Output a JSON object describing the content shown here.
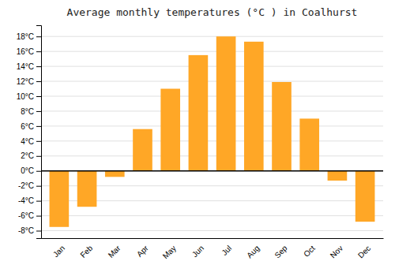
{
  "chart_data": {
    "type": "bar",
    "title": "Average monthly temperatures (°C ) in Coalhurst",
    "categories": [
      "Jan",
      "Feb",
      "Mar",
      "Apr",
      "May",
      "Jun",
      "Jul",
      "Aug",
      "Sep",
      "Oct",
      "Nov",
      "Dec"
    ],
    "values": [
      -7.5,
      -4.8,
      -0.8,
      5.6,
      11.0,
      15.5,
      18.0,
      17.3,
      11.9,
      7.0,
      -1.3,
      -6.8
    ],
    "color": "#FFA726",
    "ylim": [
      -9,
      19.5
    ],
    "yticks": [
      {
        "value": -8,
        "label": "-8°C"
      },
      {
        "value": -6,
        "label": "-6°C"
      },
      {
        "value": -4,
        "label": "-4°C"
      },
      {
        "value": -2,
        "label": "-2°C"
      },
      {
        "value": 0,
        "label": "0°C"
      },
      {
        "value": 2,
        "label": "2°C"
      },
      {
        "value": 4,
        "label": "4°C"
      },
      {
        "value": 6,
        "label": "6°C"
      },
      {
        "value": 8,
        "label": "8°C"
      },
      {
        "value": 10,
        "label": "10°C"
      },
      {
        "value": 12,
        "label": "12°C"
      },
      {
        "value": 14,
        "label": "14°C"
      },
      {
        "value": 16,
        "label": "16°C"
      },
      {
        "value": 18,
        "label": "18°C"
      }
    ],
    "grid": true
  }
}
